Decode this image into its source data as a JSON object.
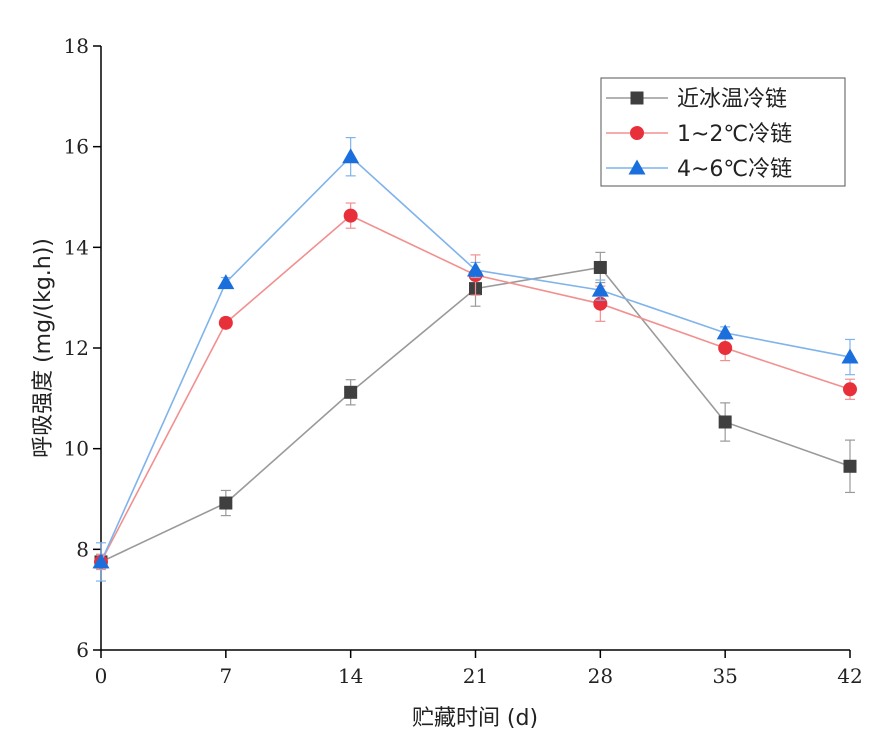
{
  "chart_data": {
    "type": "line",
    "title": "",
    "xlabel": "贮藏时间 (d)",
    "ylabel": "呼吸强度 (mg/(kg.h))",
    "x": [
      0,
      7,
      14,
      21,
      28,
      35,
      42
    ],
    "x_ticks": [
      "0",
      "7",
      "14",
      "21",
      "28",
      "35",
      "42"
    ],
    "xlim": [
      0,
      42
    ],
    "ylim": [
      6,
      18
    ],
    "y_ticks": [
      "6",
      "8",
      "10",
      "12",
      "14",
      "16",
      "18"
    ],
    "grid": false,
    "legend_position": "top-right",
    "series": [
      {
        "name": "近冰温冷链",
        "color": "#3f3f3f",
        "line_color": "#9a9a9a",
        "marker": "square",
        "values": [
          7.75,
          8.92,
          11.12,
          13.18,
          13.6,
          10.53,
          9.65
        ],
        "errors": [
          0.15,
          0.25,
          0.25,
          0.35,
          0.3,
          0.38,
          0.52
        ]
      },
      {
        "name": "1~2℃冷链",
        "color": "#e8303a",
        "line_color": "#f29090",
        "marker": "circle",
        "values": [
          7.75,
          12.5,
          14.63,
          13.45,
          12.88,
          12.0,
          11.18
        ],
        "errors": [
          0.15,
          0.1,
          0.25,
          0.4,
          0.35,
          0.25,
          0.2
        ]
      },
      {
        "name": "4~6℃冷链",
        "color": "#1b6fdc",
        "line_color": "#7fb3ec",
        "marker": "triangle",
        "values": [
          7.75,
          13.3,
          15.8,
          13.55,
          13.15,
          12.3,
          11.82
        ],
        "errors": [
          0.38,
          0.1,
          0.38,
          0.15,
          0.2,
          0.12,
          0.35
        ]
      }
    ]
  }
}
